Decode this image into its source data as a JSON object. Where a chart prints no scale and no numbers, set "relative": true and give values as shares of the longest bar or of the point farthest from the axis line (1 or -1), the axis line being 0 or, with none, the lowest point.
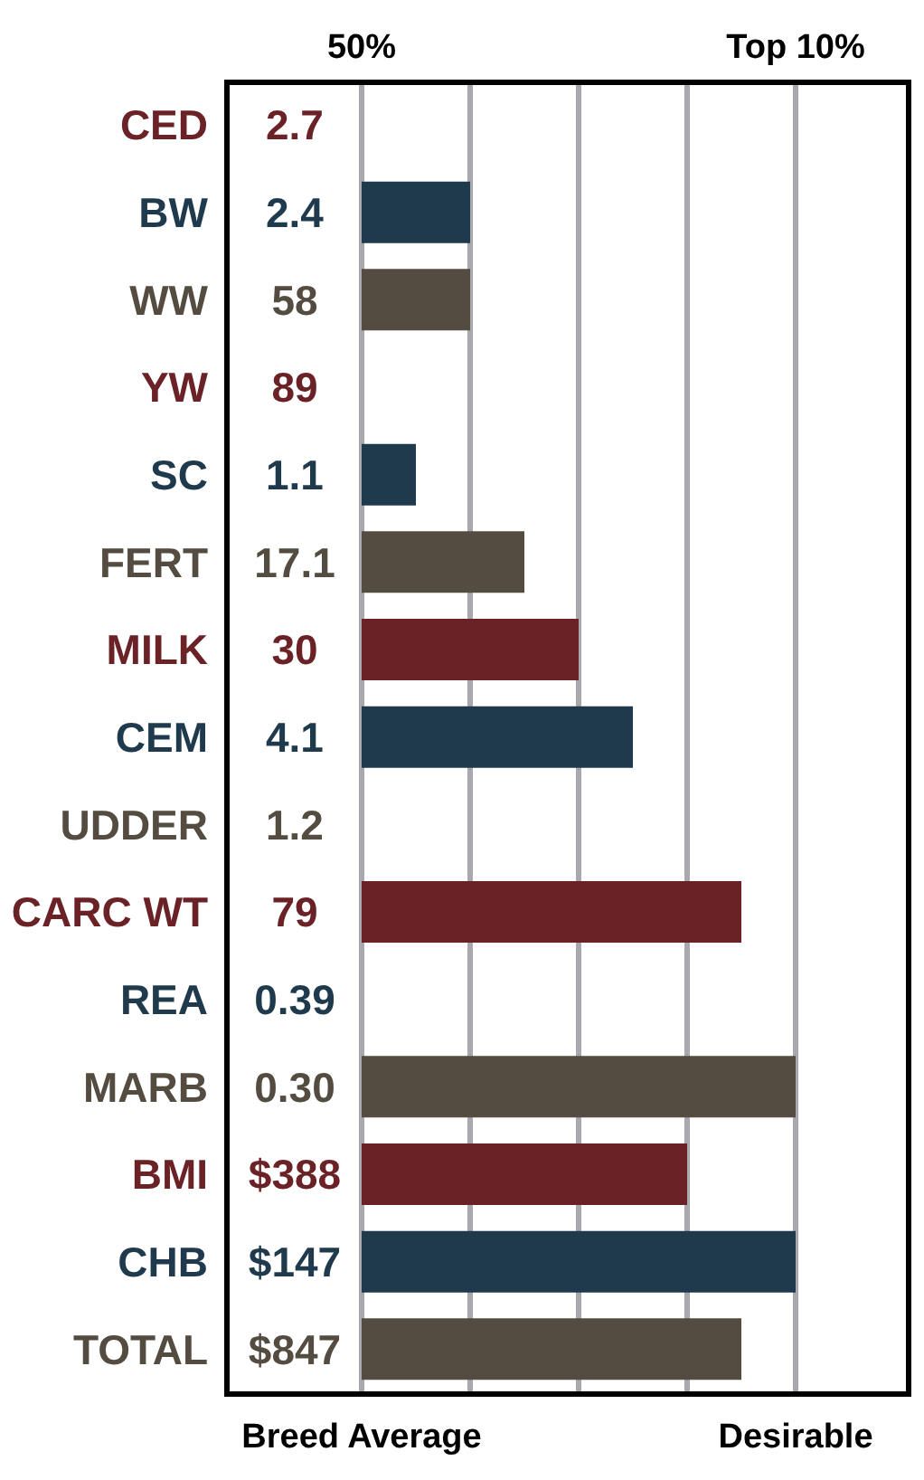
{
  "chart_data": {
    "type": "bar",
    "orientation": "horizontal",
    "relative": true,
    "categories": [
      "CED",
      "BW",
      "WW",
      "YW",
      "SC",
      "FERT",
      "MILK",
      "CEM",
      "UDDER",
      "CARC WT",
      "REA",
      "MARB",
      "BMI",
      "CHB",
      "TOTAL"
    ],
    "values": [
      0,
      0.25,
      0.25,
      0,
      0.125,
      0.375,
      0.5,
      0.625,
      0,
      0.875,
      0,
      1,
      0.75,
      1,
      0.875
    ],
    "colors": [
      "#6b2226",
      "#1e3a4c",
      "#544c40",
      "#6b2226",
      "#1e3a4c",
      "#544c40",
      "#6b2226",
      "#1e3a4c",
      "#544c40",
      "#6b2226",
      "#1e3a4c",
      "#544c40",
      "#6b2226",
      "#1e3a4c",
      "#544c40"
    ],
    "annotations": [
      "50%",
      "Top 10%",
      "Breed Average",
      "Desirable",
      "2.7",
      "2.4",
      "58",
      "89",
      "1.1",
      "17.1",
      "30",
      "4.1",
      "1.2",
      "79",
      "0.39",
      "0.30",
      "$388",
      "$147",
      "$847"
    ],
    "grid": "x"
  }
}
